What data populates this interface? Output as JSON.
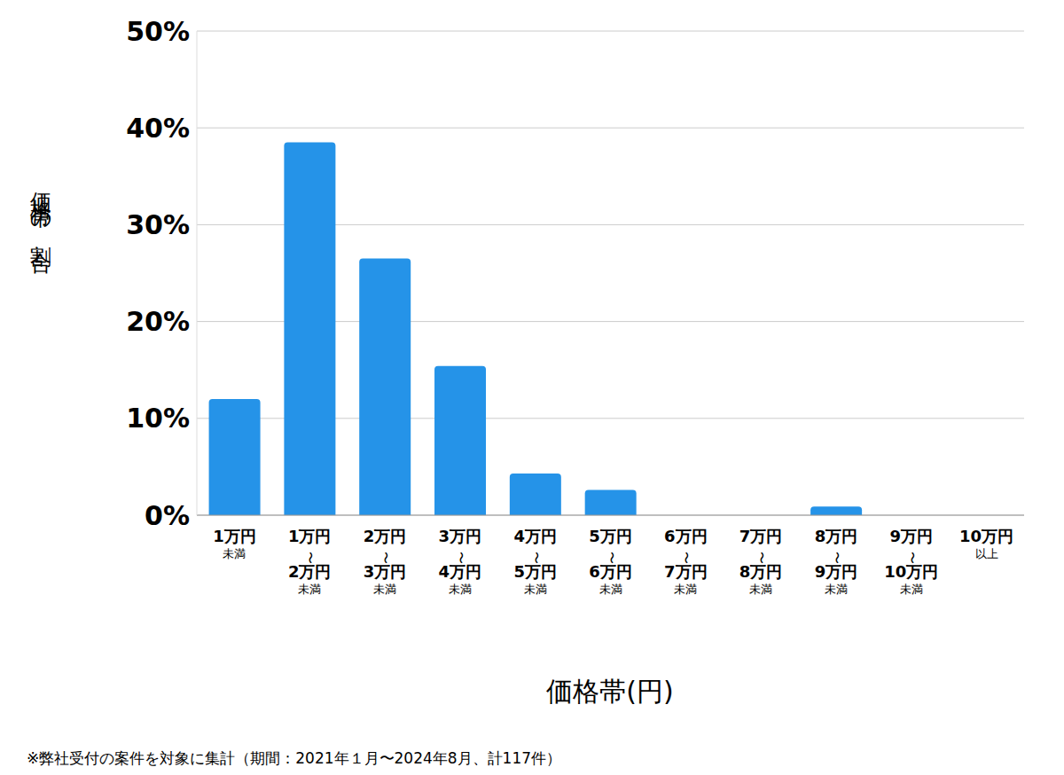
{
  "chart_data": {
    "type": "bar",
    "y_label": "価格帯の割合",
    "x_label": "価格帯(円)",
    "footnote": "※弊社受付の案件を対象に集計（期間：2021年１月〜2024年8月、計117件）",
    "categories": [
      "1万円\n未満",
      "1万円\n〜\n2万円\n未満",
      "2万円\n〜\n3万円\n未満",
      "3万円\n〜\n4万円\n未満",
      "4万円\n〜\n5万円\n未満",
      "5万円\n〜\n6万円\n未満",
      "6万円\n〜\n7万円\n未満",
      "7万円\n〜\n8万円\n未満",
      "8万円\n〜\n9万円\n未満",
      "9万円\n〜\n10万円\n未満",
      "10万円\n以上"
    ],
    "values": [
      12.0,
      38.5,
      26.5,
      15.4,
      4.3,
      2.6,
      0,
      0,
      0.9,
      0,
      0
    ],
    "color": "#2593e8",
    "ylim": [
      0,
      50
    ],
    "yticks": [
      {
        "value": 0,
        "label": "0%"
      },
      {
        "value": 10,
        "label": "10%"
      },
      {
        "value": 20,
        "label": "20%"
      },
      {
        "value": 30,
        "label": "30%"
      },
      {
        "value": 40,
        "label": "40%"
      },
      {
        "value": 50,
        "label": "50%"
      }
    ],
    "grid": true
  }
}
